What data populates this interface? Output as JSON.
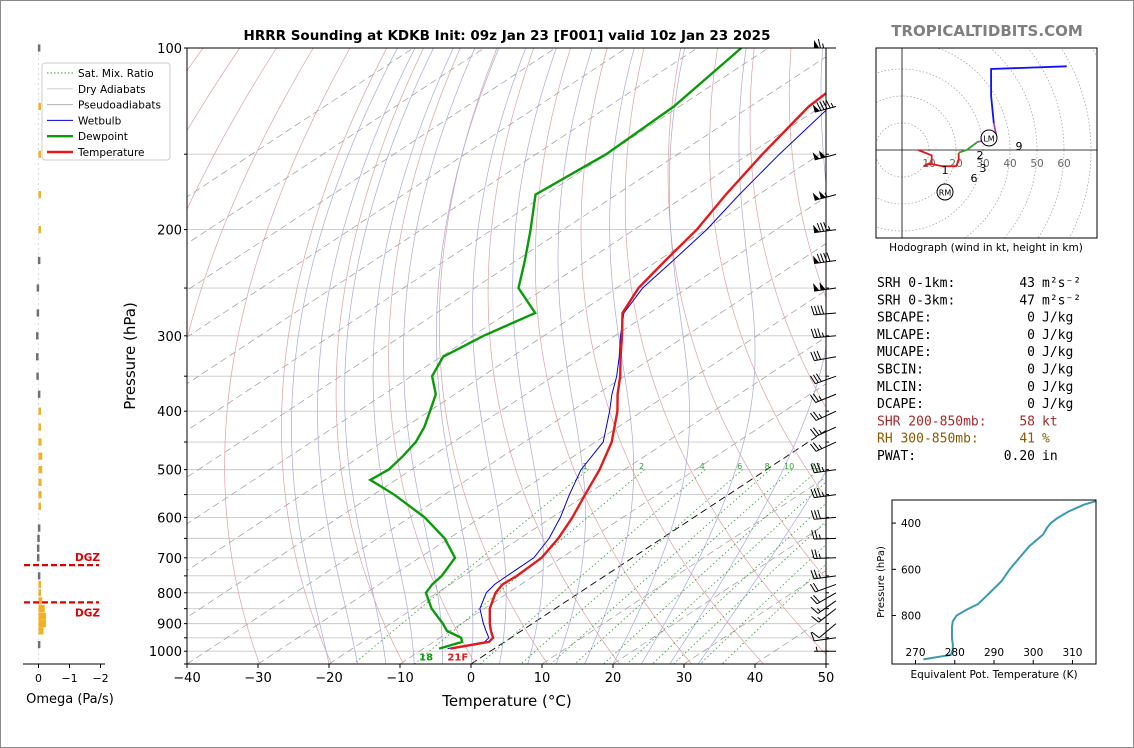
{
  "brand": "TROPICALTIDBITS.COM",
  "colors": {
    "temperature": "#e31a1c",
    "dewpoint": "#0a9b0a",
    "wetbulb": "#0000dd",
    "dry_adiabat": "#e0a0a0",
    "moist_adiabat": "#a8a8e0",
    "mixing_ratio": "#2e9e2e",
    "isotherm_zero": "#000000",
    "omega_up": "#f5b020",
    "omega_down": "#707070",
    "dgz": "#e00000",
    "theta_e": "#3a9ab0",
    "hodo_0_3": "#e31a1c",
    "hodo_3_6": "#2ca02c",
    "hodo_6_9": "#b040c0",
    "hodo_9_12": "#1010ff",
    "brand": "#7f7f7f"
  },
  "chart_data": [
    {
      "type": "line",
      "subtype": "skew-t log-p",
      "title": "HRRR Sounding at KDKB Init: 09z Jan 23 [F001] valid 10z Jan 23 2025",
      "xlabel": "Temperature (°C)",
      "ylabel": "Pressure (hPa)",
      "xlim": [
        -40,
        50
      ],
      "ylim": [
        1050,
        100
      ],
      "yscale": "log",
      "xticks": [
        -40,
        -30,
        -20,
        -10,
        0,
        10,
        20,
        30,
        40,
        50
      ],
      "yticks": [
        100,
        200,
        300,
        400,
        500,
        600,
        700,
        800,
        900,
        1000
      ],
      "legend": {
        "position": "top-left",
        "items": [
          "Sat. Mix. Ratio",
          "Dry Adiabats",
          "Pseudoadiabats",
          "Wetbulb",
          "Dewpoint",
          "Temperature"
        ]
      },
      "mixing_ratio_labels": [
        "1",
        "2",
        "4",
        "6",
        "8",
        "10",
        "13",
        "16",
        "20",
        "24",
        "30",
        "36"
      ],
      "surface_label_dewpoint": "18",
      "surface_label_temperature": "21F",
      "series": [
        {
          "name": "Temperature",
          "p": [
            990,
            965,
            950,
            925,
            900,
            850,
            800,
            775,
            750,
            700,
            650,
            600,
            550,
            500,
            450,
            400,
            375,
            350,
            325,
            300,
            275,
            250,
            225,
            200,
            175,
            150,
            125,
            110,
            100
          ],
          "t": [
            -6.2,
            -2.2,
            -2.5,
            -4.3,
            -6.0,
            -9.2,
            -11.8,
            -12.6,
            -12.4,
            -12.8,
            -14.6,
            -17.1,
            -20.2,
            -23.5,
            -27.7,
            -33.5,
            -37.1,
            -40.6,
            -44.7,
            -49.0,
            -53.8,
            -56.9,
            -59.0,
            -61.2,
            -64.6,
            -68.1,
            -71.8,
            -72.8,
            -73.3
          ]
        },
        {
          "name": "Dewpoint",
          "p": [
            990,
            965,
            950,
            925,
            900,
            850,
            800,
            775,
            750,
            700,
            650,
            600,
            550,
            520,
            500,
            475,
            450,
            425,
            400,
            375,
            350,
            325,
            300,
            275,
            250,
            225,
            200,
            175,
            150,
            125,
            100
          ],
          "td": [
            -7.8,
            -6.0,
            -7.0,
            -10.5,
            -12.6,
            -17.4,
            -21.6,
            -22.5,
            -23.0,
            -25.0,
            -30.6,
            -37.9,
            -47.1,
            -53.6,
            -53.2,
            -54.1,
            -55.3,
            -57.3,
            -59.9,
            -62.7,
            -67.1,
            -69.7,
            -68.5,
            -66.1,
            -73.8,
            -78.8,
            -84.6,
            -91.4,
            -90.1,
            -90.8,
            -93.8
          ]
        },
        {
          "name": "Wetbulb",
          "p": [
            990,
            965,
            950,
            925,
            900,
            850,
            800,
            775,
            750,
            700,
            650,
            600,
            550,
            500,
            450,
            400,
            375,
            350,
            325,
            300,
            275,
            250,
            225,
            200,
            175,
            150,
            125,
            110,
            100
          ],
          "tw": [
            -6.6,
            -2.8,
            -3.1,
            -5.0,
            -6.9,
            -10.6,
            -13.1,
            -13.7,
            -13.8,
            -13.9,
            -15.9,
            -18.8,
            -22.4,
            -26.1,
            -28.9,
            -34.6,
            -37.9,
            -41.1,
            -44.9,
            -49.2,
            -53.6,
            -56.3,
            -57.9,
            -59.8,
            -62.7,
            -65.7,
            -68.8,
            -69.5,
            -69.9
          ]
        }
      ]
    },
    {
      "type": "bar",
      "subtype": "omega profile",
      "xlabel": "Omega (Pa/s)",
      "xlim": [
        0.2,
        -2.0
      ],
      "xticks": [
        "0",
        "−1",
        "−2"
      ],
      "dgz_label": "DGZ",
      "dgz_pressures": [
        720,
        830
      ],
      "bars": [
        {
          "p": 100,
          "omega": 0.02
        },
        {
          "p": 125,
          "omega": -0.02
        },
        {
          "p": 150,
          "omega": -0.04
        },
        {
          "p": 175,
          "omega": -0.04
        },
        {
          "p": 200,
          "omega": -0.04
        },
        {
          "p": 225,
          "omega": 0.02
        },
        {
          "p": 250,
          "omega": 0.06
        },
        {
          "p": 275,
          "omega": 0.06
        },
        {
          "p": 300,
          "omega": 0.08
        },
        {
          "p": 325,
          "omega": 0.08
        },
        {
          "p": 350,
          "omega": 0.07
        },
        {
          "p": 375,
          "omega": 0.02
        },
        {
          "p": 400,
          "omega": -0.05
        },
        {
          "p": 425,
          "omega": -0.08
        },
        {
          "p": 450,
          "omega": -0.1
        },
        {
          "p": 475,
          "omega": -0.12
        },
        {
          "p": 500,
          "omega": -0.12
        },
        {
          "p": 525,
          "omega": -0.1
        },
        {
          "p": 550,
          "omega": -0.1
        },
        {
          "p": 575,
          "omega": -0.04
        },
        {
          "p": 625,
          "omega": 0.02
        },
        {
          "p": 650,
          "omega": 0.04
        },
        {
          "p": 675,
          "omega": 0.05
        },
        {
          "p": 700,
          "omega": 0.05
        },
        {
          "p": 750,
          "omega": 0.02
        },
        {
          "p": 775,
          "omega": -0.02
        },
        {
          "p": 800,
          "omega": -0.06
        },
        {
          "p": 825,
          "omega": -0.12
        },
        {
          "p": 850,
          "omega": -0.2
        },
        {
          "p": 875,
          "omega": -0.24
        },
        {
          "p": 900,
          "omega": -0.24
        },
        {
          "p": 925,
          "omega": -0.16
        },
        {
          "p": 975,
          "omega": 0.02
        }
      ]
    },
    {
      "type": "line",
      "subtype": "hodograph",
      "xlabel": "Hodograph (wind in kt, height in km)",
      "ring_labels": [
        "10",
        "20",
        "30",
        "40",
        "50",
        "60"
      ],
      "height_labels": [
        "1",
        "2",
        "3",
        "6",
        "9"
      ],
      "markers": [
        "LM",
        "RM"
      ],
      "points_kt": [
        [
          6,
          0
        ],
        [
          11,
          -2
        ],
        [
          11,
          -5
        ],
        [
          8,
          -6
        ],
        [
          10,
          -5
        ],
        [
          15,
          -6
        ],
        [
          20,
          -6
        ],
        [
          21,
          -4
        ],
        [
          21,
          -1
        ],
        [
          24,
          0
        ],
        [
          28,
          3
        ],
        [
          33,
          4
        ],
        [
          35,
          5
        ],
        [
          34,
          10
        ],
        [
          33,
          20
        ],
        [
          33,
          30
        ],
        [
          61,
          31
        ]
      ]
    },
    {
      "type": "line",
      "subtype": "theta-e profile",
      "xlabel": "Equivalent Pot. Temperature (K)",
      "ylabel": "Pressure (hPa)",
      "xlim": [
        264,
        316
      ],
      "ylim": [
        1010,
        300
      ],
      "xticks": [
        270,
        280,
        290,
        300,
        310
      ],
      "yticks": [
        400,
        600,
        800
      ],
      "p": [
        990,
        970,
        950,
        925,
        900,
        875,
        850,
        825,
        800,
        775,
        750,
        725,
        700,
        650,
        600,
        550,
        500,
        450,
        420,
        400,
        380,
        350,
        320,
        300
      ],
      "theta_e": [
        272,
        279,
        279.5,
        279.5,
        279.3,
        279.3,
        279.3,
        279.5,
        280.5,
        283,
        286,
        287.5,
        289,
        292,
        294,
        296.5,
        299,
        302.5,
        303.5,
        304.5,
        306,
        309,
        313,
        317
      ]
    }
  ],
  "indices": [
    {
      "label": "SRH 0-1km:",
      "value": "43",
      "unit": "m²s⁻²",
      "color": "#000000"
    },
    {
      "label": "SRH 0-3km:",
      "value": "47",
      "unit": "m²s⁻²",
      "color": "#000000"
    },
    {
      "label": "SBCAPE:",
      "value": "0",
      "unit": "J/kg",
      "color": "#000000"
    },
    {
      "label": "MLCAPE:",
      "value": "0",
      "unit": "J/kg",
      "color": "#000000"
    },
    {
      "label": "MUCAPE:",
      "value": "0",
      "unit": "J/kg",
      "color": "#000000"
    },
    {
      "label": "SBCIN:",
      "value": "0",
      "unit": "J/kg",
      "color": "#000000"
    },
    {
      "label": "MLCIN:",
      "value": "0",
      "unit": "J/kg",
      "color": "#000000"
    },
    {
      "label": "DCAPE:",
      "value": "0",
      "unit": "J/kg",
      "color": "#000000"
    },
    {
      "label": "SHR 200-850mb:",
      "value": "58",
      "unit": "kt",
      "color": "#a52a2a"
    },
    {
      "label": "RH 300-850mb:",
      "value": "41",
      "unit": "%",
      "color": "#8b5a00"
    },
    {
      "label": "PWAT:",
      "value": "0.20",
      "unit": "in",
      "color": "#000000"
    }
  ],
  "wind_barbs": [
    {
      "p": 100,
      "dir": 270,
      "kt": 65
    },
    {
      "p": 125,
      "dir": 255,
      "kt": 95
    },
    {
      "p": 150,
      "dir": 255,
      "kt": 100
    },
    {
      "p": 175,
      "dir": 255,
      "kt": 105
    },
    {
      "p": 200,
      "dir": 262,
      "kt": 85
    },
    {
      "p": 225,
      "dir": 262,
      "kt": 90
    },
    {
      "p": 250,
      "dir": 262,
      "kt": 100
    },
    {
      "p": 275,
      "dir": 265,
      "kt": 40
    },
    {
      "p": 300,
      "dir": 265,
      "kt": 35
    },
    {
      "p": 325,
      "dir": 260,
      "kt": 30
    },
    {
      "p": 350,
      "dir": 250,
      "kt": 30
    },
    {
      "p": 375,
      "dir": 248,
      "kt": 25
    },
    {
      "p": 400,
      "dir": 245,
      "kt": 25
    },
    {
      "p": 425,
      "dir": 245,
      "kt": 25
    },
    {
      "p": 450,
      "dir": 245,
      "kt": 25
    },
    {
      "p": 500,
      "dir": 262,
      "kt": 35
    },
    {
      "p": 550,
      "dir": 262,
      "kt": 35
    },
    {
      "p": 600,
      "dir": 265,
      "kt": 30
    },
    {
      "p": 650,
      "dir": 268,
      "kt": 25
    },
    {
      "p": 700,
      "dir": 268,
      "kt": 25
    },
    {
      "p": 750,
      "dir": 262,
      "kt": 25
    },
    {
      "p": 775,
      "dir": 250,
      "kt": 20
    },
    {
      "p": 800,
      "dir": 240,
      "kt": 20
    },
    {
      "p": 825,
      "dir": 235,
      "kt": 15
    },
    {
      "p": 850,
      "dir": 232,
      "kt": 15
    },
    {
      "p": 900,
      "dir": 230,
      "kt": 10
    },
    {
      "p": 950,
      "dir": 262,
      "kt": 10
    },
    {
      "p": 1000,
      "dir": 270,
      "kt": 5
    }
  ]
}
